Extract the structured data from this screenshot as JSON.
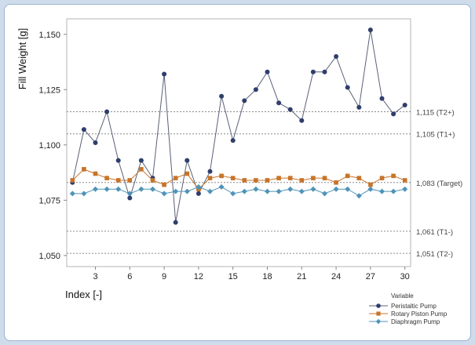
{
  "chart_data": {
    "type": "line",
    "title": "",
    "xlabel": "Index [-]",
    "ylabel": "Fill Weight [g]",
    "xlim": [
      0.5,
      30.5
    ],
    "ylim": [
      1.045,
      1.157
    ],
    "x_ticks": [
      3,
      6,
      9,
      12,
      15,
      18,
      21,
      24,
      27,
      30
    ],
    "x_tick_labels": [
      "3",
      "6",
      "9",
      "12",
      "15",
      "18",
      "21",
      "24",
      "27",
      "30"
    ],
    "y_ticks": [
      1.05,
      1.075,
      1.1,
      1.125,
      1.15
    ],
    "y_tick_labels": [
      "1,050",
      "1,075",
      "1,100",
      "1,125",
      "1,150"
    ],
    "reference_lines": [
      {
        "value": 1.115,
        "label": "1,115 (T2+)"
      },
      {
        "value": 1.105,
        "label": "1,105 (T1+)"
      },
      {
        "value": 1.083,
        "label": "1,083 (Target)"
      },
      {
        "value": 1.061,
        "label": "1,061 (T1-)"
      },
      {
        "value": 1.051,
        "label": "1,051 (T2-)"
      }
    ],
    "legend_title": "Variable",
    "x": [
      1,
      2,
      3,
      4,
      5,
      6,
      7,
      8,
      9,
      10,
      11,
      12,
      13,
      14,
      15,
      16,
      17,
      18,
      19,
      20,
      21,
      22,
      23,
      24,
      25,
      26,
      27,
      28,
      29,
      30
    ],
    "series": [
      {
        "name": "Peristaltic Pump",
        "color": "#2f3e6b",
        "marker": "circle",
        "values": [
          1.083,
          1.107,
          1.101,
          1.115,
          1.093,
          1.076,
          1.093,
          1.085,
          1.132,
          1.065,
          1.093,
          1.078,
          1.088,
          1.122,
          1.102,
          1.12,
          1.125,
          1.133,
          1.119,
          1.116,
          1.111,
          1.133,
          1.133,
          1.14,
          1.126,
          1.117,
          1.152,
          1.121,
          1.114,
          1.118
        ]
      },
      {
        "name": "Rotary Piston Pump",
        "color": "#c7742a",
        "marker": "square",
        "values": [
          1.084,
          1.089,
          1.087,
          1.085,
          1.084,
          1.084,
          1.089,
          1.084,
          1.082,
          1.085,
          1.087,
          1.08,
          1.085,
          1.086,
          1.085,
          1.084,
          1.084,
          1.084,
          1.085,
          1.085,
          1.084,
          1.085,
          1.085,
          1.083,
          1.086,
          1.085,
          1.082,
          1.085,
          1.086,
          1.084
        ]
      },
      {
        "name": "Diaphragm Pump",
        "color": "#4f93b8",
        "marker": "diamond",
        "values": [
          1.078,
          1.078,
          1.08,
          1.08,
          1.08,
          1.078,
          1.08,
          1.08,
          1.078,
          1.079,
          1.079,
          1.081,
          1.079,
          1.081,
          1.078,
          1.079,
          1.08,
          1.079,
          1.079,
          1.08,
          1.079,
          1.08,
          1.078,
          1.08,
          1.08,
          1.077,
          1.08,
          1.079,
          1.079,
          1.08
        ]
      }
    ]
  }
}
